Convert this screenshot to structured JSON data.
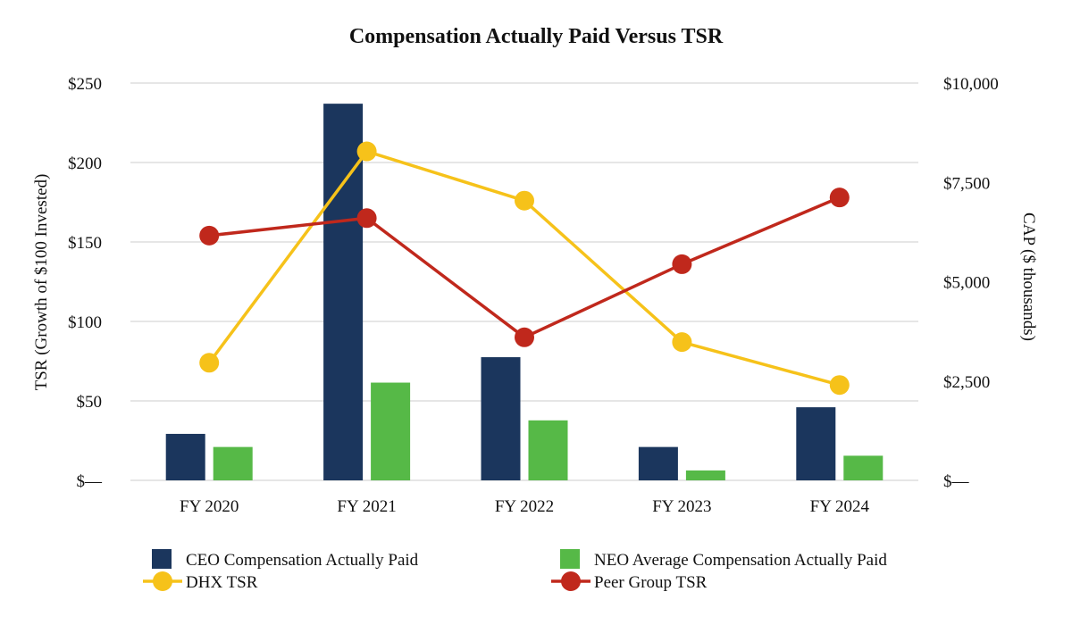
{
  "chart_data": {
    "type": "bar",
    "title": "Compensation Actually Paid Versus TSR",
    "categories": [
      "FY 2020",
      "FY 2021",
      "FY 2022",
      "FY 2023",
      "FY 2024"
    ],
    "left_axis": {
      "label": "TSR (Growth of $100 Invested)",
      "range": [
        0,
        250
      ],
      "ticks": [
        0,
        50,
        100,
        150,
        200,
        250
      ],
      "tick_labels": [
        "$—",
        "$50",
        "$100",
        "$150",
        "$200",
        "$250"
      ]
    },
    "right_axis": {
      "label": "CAP ($ thousands)",
      "range": [
        0,
        10000
      ],
      "ticks": [
        0,
        2500,
        5000,
        7500,
        10000
      ],
      "tick_labels": [
        "$—",
        "$2,500",
        "$5,000",
        "$7,500",
        "$10,000"
      ]
    },
    "grid": true,
    "legend_position": "bottom",
    "bar_series": [
      {
        "name": "CEO Compensation Actually Paid",
        "axis": "right",
        "color": "#1b365d",
        "values": [
          1170,
          9480,
          3100,
          840,
          1840
        ]
      },
      {
        "name": "NEO Average Compensation Actually Paid",
        "axis": "right",
        "color": "#56b947",
        "values": [
          840,
          2460,
          1510,
          250,
          620
        ]
      }
    ],
    "line_series": [
      {
        "name": "DHX TSR",
        "axis": "left",
        "color": "#f6c21a",
        "values": [
          74,
          207,
          176,
          87,
          60
        ]
      },
      {
        "name": "Peer Group TSR",
        "axis": "left",
        "color": "#c0281c",
        "values": [
          154,
          165,
          90,
          136,
          178
        ]
      }
    ]
  }
}
